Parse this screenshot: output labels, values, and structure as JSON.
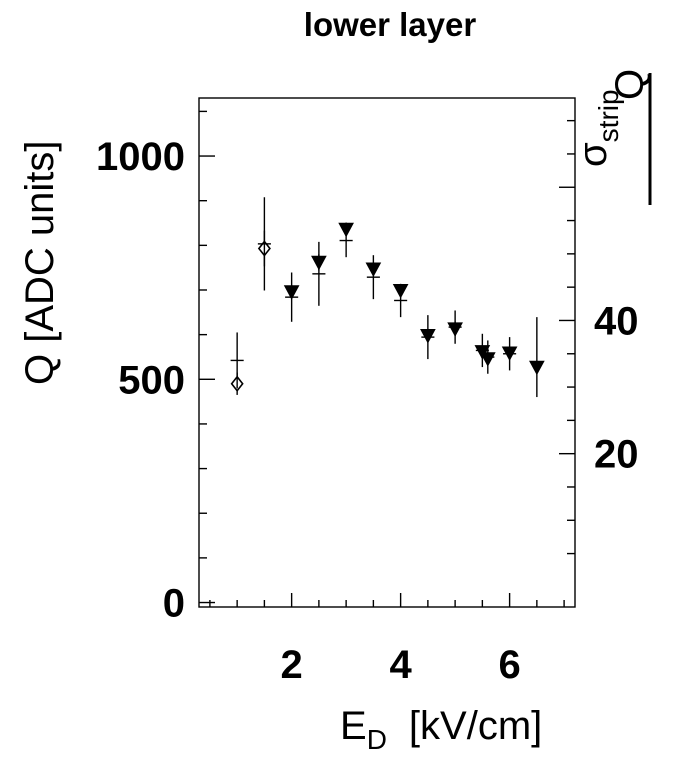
{
  "chart_data": {
    "type": "scatter",
    "title": "lower layer",
    "xlabel": "E",
    "xlabel_sub": "D",
    "xlabel_unit": "[kV/cm]",
    "ylabel": "Q [ADC units]",
    "y2label_num": "Q",
    "y2label_den": "σ",
    "y2label_den_sub": "strip",
    "xlim": [
      0.3,
      7.2
    ],
    "ylim": [
      -10,
      1130
    ],
    "y2lim": [
      -3.02,
      73.4
    ],
    "x_ticks": [
      2,
      4,
      6
    ],
    "y_ticks": [
      0,
      500,
      1000
    ],
    "y2_ticks": [
      20,
      40
    ],
    "series": [
      {
        "marker": "open-diamond",
        "points": [
          {
            "x": 1.0,
            "y": 490,
            "err": 25
          },
          {
            "x": 1.5,
            "y": 793,
            "err": 40
          }
        ]
      },
      {
        "marker": "filled-triangle-down",
        "points": [
          {
            "x": 2.0,
            "y": 696,
            "err": 15
          },
          {
            "x": 2.5,
            "y": 762,
            "err": 18
          },
          {
            "x": 3.0,
            "y": 836,
            "err": 15
          },
          {
            "x": 3.5,
            "y": 747,
            "err": 14
          },
          {
            "x": 4.0,
            "y": 699,
            "err": 14
          },
          {
            "x": 4.5,
            "y": 598,
            "err": 14
          },
          {
            "x": 5.0,
            "y": 613,
            "err": 16
          },
          {
            "x": 5.5,
            "y": 562,
            "err": 14
          },
          {
            "x": 5.6,
            "y": 546,
            "err": 14
          },
          {
            "x": 6.0,
            "y": 559,
            "err": 14
          },
          {
            "x": 6.5,
            "y": 527,
            "err": 0
          }
        ]
      },
      {
        "marker": "plus",
        "points": [
          {
            "x": 1.0,
            "y": 34.0,
            "err": 4.2,
            "xerr": 0.12
          },
          {
            "x": 1.5,
            "y": 51.5,
            "err": 7.0,
            "xerr": 0.12
          },
          {
            "x": 2.0,
            "y": 43.5,
            "err": 3.7,
            "xerr": 0.12
          },
          {
            "x": 2.5,
            "y": 47.0,
            "err": 4.8,
            "xerr": 0.12
          },
          {
            "x": 3.0,
            "y": 52.0,
            "err": 2.5,
            "xerr": 0.12
          },
          {
            "x": 3.5,
            "y": 46.5,
            "err": 3.3,
            "xerr": 0.12
          },
          {
            "x": 4.0,
            "y": 43.0,
            "err": 2.5,
            "xerr": 0.12
          },
          {
            "x": 4.5,
            "y": 37.5,
            "err": 3.3,
            "xerr": 0.12
          },
          {
            "x": 5.0,
            "y": 39.0,
            "err": 2.5,
            "xerr": 0.12
          },
          {
            "x": 5.5,
            "y": 35.5,
            "err": 2.5,
            "xerr": 0.12
          },
          {
            "x": 5.6,
            "y": 34.5,
            "err": 2.5,
            "xerr": 0.12
          },
          {
            "x": 6.0,
            "y": 35.0,
            "err": 2.5,
            "xerr": 0.12
          },
          {
            "x": 6.5,
            "y": 34.5,
            "err": 6.0,
            "xerr": 0
          }
        ]
      }
    ],
    "grid": false,
    "legend": "none"
  }
}
